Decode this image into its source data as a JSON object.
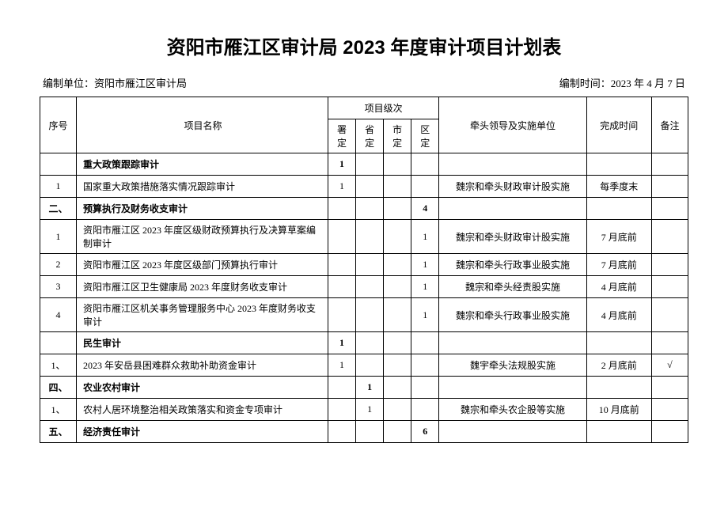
{
  "title": "资阳市雁江区审计局 2023 年度审计项目计划表",
  "meta": {
    "org_label": "编制单位：资阳市雁江区审计局",
    "date_label": "编制时间：2023 年 4 月 7 日"
  },
  "headers": {
    "seq": "序号",
    "name": "项目名称",
    "level_group": "项目级次",
    "level_shu": "署定",
    "level_sheng": "省定",
    "level_shi": "市定",
    "level_qu": "区定",
    "unit": "牵头领导及实施单位",
    "time": "完成时间",
    "note": "备注"
  },
  "rows": [
    {
      "seq": "",
      "name": "重大政策跟踪审计",
      "shu": "1",
      "sheng": "",
      "shi": "",
      "qu": "",
      "unit": "",
      "time": "",
      "note": "",
      "section": true
    },
    {
      "seq": "1",
      "name": "国家重大政策措施落实情况跟踪审计",
      "shu": "1",
      "sheng": "",
      "shi": "",
      "qu": "",
      "unit": "魏宗和牵头财政审计股实施",
      "time": "每季度末",
      "note": ""
    },
    {
      "seq": "二、",
      "name": "预算执行及财务收支审计",
      "shu": "",
      "sheng": "",
      "shi": "",
      "qu": "4",
      "unit": "",
      "time": "",
      "note": "",
      "section": true
    },
    {
      "seq": "1",
      "name": "资阳市雁江区 2023 年度区级财政预算执行及决算草案编制审计",
      "shu": "",
      "sheng": "",
      "shi": "",
      "qu": "1",
      "unit": "魏宗和牵头财政审计股实施",
      "time": "7 月底前",
      "note": ""
    },
    {
      "seq": "2",
      "name": "资阳市雁江区 2023 年度区级部门预算执行审计",
      "shu": "",
      "sheng": "",
      "shi": "",
      "qu": "1",
      "unit": "魏宗和牵头行政事业股实施",
      "time": "7 月底前",
      "note": ""
    },
    {
      "seq": "3",
      "name": "资阳市雁江区卫生健康局 2023 年度财务收支审计",
      "shu": "",
      "sheng": "",
      "shi": "",
      "qu": "1",
      "unit": "魏宗和牵头经责股实施",
      "time": "4 月底前",
      "note": ""
    },
    {
      "seq": "4",
      "name": "资阳市雁江区机关事务管理服务中心 2023 年度财务收支审计",
      "shu": "",
      "sheng": "",
      "shi": "",
      "qu": "1",
      "unit": "魏宗和牵头行政事业股实施",
      "time": "4 月底前",
      "note": ""
    },
    {
      "seq": "",
      "name": "民生审计",
      "shu": "1",
      "sheng": "",
      "shi": "",
      "qu": "",
      "unit": "",
      "time": "",
      "note": "",
      "section": true
    },
    {
      "seq": "1、",
      "name": "2023 年安岳县困难群众救助补助资金审计",
      "shu": "1",
      "sheng": "",
      "shi": "",
      "qu": "",
      "unit": "魏宇牵头法规股实施",
      "time": "2 月底前",
      "note": "√"
    },
    {
      "seq": "四、",
      "name": "农业农村审计",
      "shu": "",
      "sheng": "1",
      "shi": "",
      "qu": "",
      "unit": "",
      "time": "",
      "note": "",
      "section": true
    },
    {
      "seq": "1、",
      "name": "农村人居环境整治相关政策落实和资金专项审计",
      "shu": "",
      "sheng": "1",
      "shi": "",
      "qu": "",
      "unit": "魏宗和牵头农企股等实施",
      "time": "10 月底前",
      "note": ""
    },
    {
      "seq": "五、",
      "name": "经济责任审计",
      "shu": "",
      "sheng": "",
      "shi": "",
      "qu": "6",
      "unit": "",
      "time": "",
      "note": "",
      "section": true
    }
  ]
}
